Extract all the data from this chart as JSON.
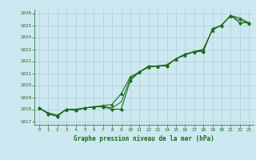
{
  "title": "Graphe pression niveau de la mer (hPa)",
  "background_color": "#cde8f0",
  "plot_bg_color": "#cde8f0",
  "grid_color": "#aacfde",
  "line_color": "#1a6b1a",
  "marker_color": "#1a6b1a",
  "x_ticks": [
    0,
    1,
    2,
    3,
    4,
    5,
    6,
    7,
    8,
    9,
    10,
    11,
    12,
    13,
    14,
    15,
    16,
    17,
    18,
    19,
    20,
    21,
    22,
    23
  ],
  "xlim": [
    -0.5,
    23.5
  ],
  "ylim": [
    1016.7,
    1026.3
  ],
  "yticks": [
    1017,
    1018,
    1019,
    1020,
    1021,
    1022,
    1023,
    1024,
    1025,
    1026
  ],
  "series": [
    {
      "x": [
        0,
        1,
        2,
        3,
        4,
        5,
        6,
        7,
        8,
        9,
        10,
        11,
        12,
        13,
        14,
        15,
        16,
        17,
        18,
        19,
        20,
        21,
        22,
        23
      ],
      "y": [
        1018.1,
        1017.6,
        1017.4,
        1018.0,
        1017.9,
        1018.1,
        1018.2,
        1018.2,
        1018.0,
        1018.0,
        1020.4,
        1021.1,
        1021.6,
        1021.6,
        1021.6,
        1022.2,
        1022.6,
        1022.8,
        1022.8,
        1024.7,
        1025.0,
        1025.8,
        1025.2,
        1025.2
      ],
      "marker": "D",
      "markersize": 2.0,
      "linewidth": 0.8
    },
    {
      "x": [
        0,
        1,
        2,
        3,
        4,
        5,
        6,
        7,
        8,
        9,
        10,
        11,
        12,
        13,
        14,
        15,
        16,
        17,
        18,
        19,
        20,
        21,
        22,
        23
      ],
      "y": [
        1018.1,
        1017.7,
        1017.5,
        1018.0,
        1018.0,
        1018.1,
        1018.2,
        1018.3,
        1018.4,
        1019.3,
        1020.7,
        1021.1,
        1021.5,
        1021.6,
        1021.7,
        1022.2,
        1022.5,
        1022.8,
        1023.0,
        1024.6,
        1025.0,
        1025.8,
        1025.6,
        1025.2
      ],
      "marker": "^",
      "markersize": 2.5,
      "linewidth": 0.8
    },
    {
      "x": [
        0,
        1,
        2,
        3,
        4,
        5,
        6,
        7,
        8,
        9,
        10,
        11,
        12,
        13,
        14,
        15,
        16,
        17,
        18,
        19,
        20,
        21,
        22,
        23
      ],
      "y": [
        1018.1,
        1017.65,
        1017.45,
        1018.0,
        1017.95,
        1018.1,
        1018.2,
        1018.25,
        1018.1,
        1018.6,
        1020.55,
        1021.1,
        1021.55,
        1021.6,
        1021.65,
        1022.2,
        1022.55,
        1022.8,
        1022.9,
        1024.65,
        1025.0,
        1025.8,
        1025.4,
        1025.2
      ],
      "marker": null,
      "markersize": 0,
      "linewidth": 0.7
    }
  ]
}
